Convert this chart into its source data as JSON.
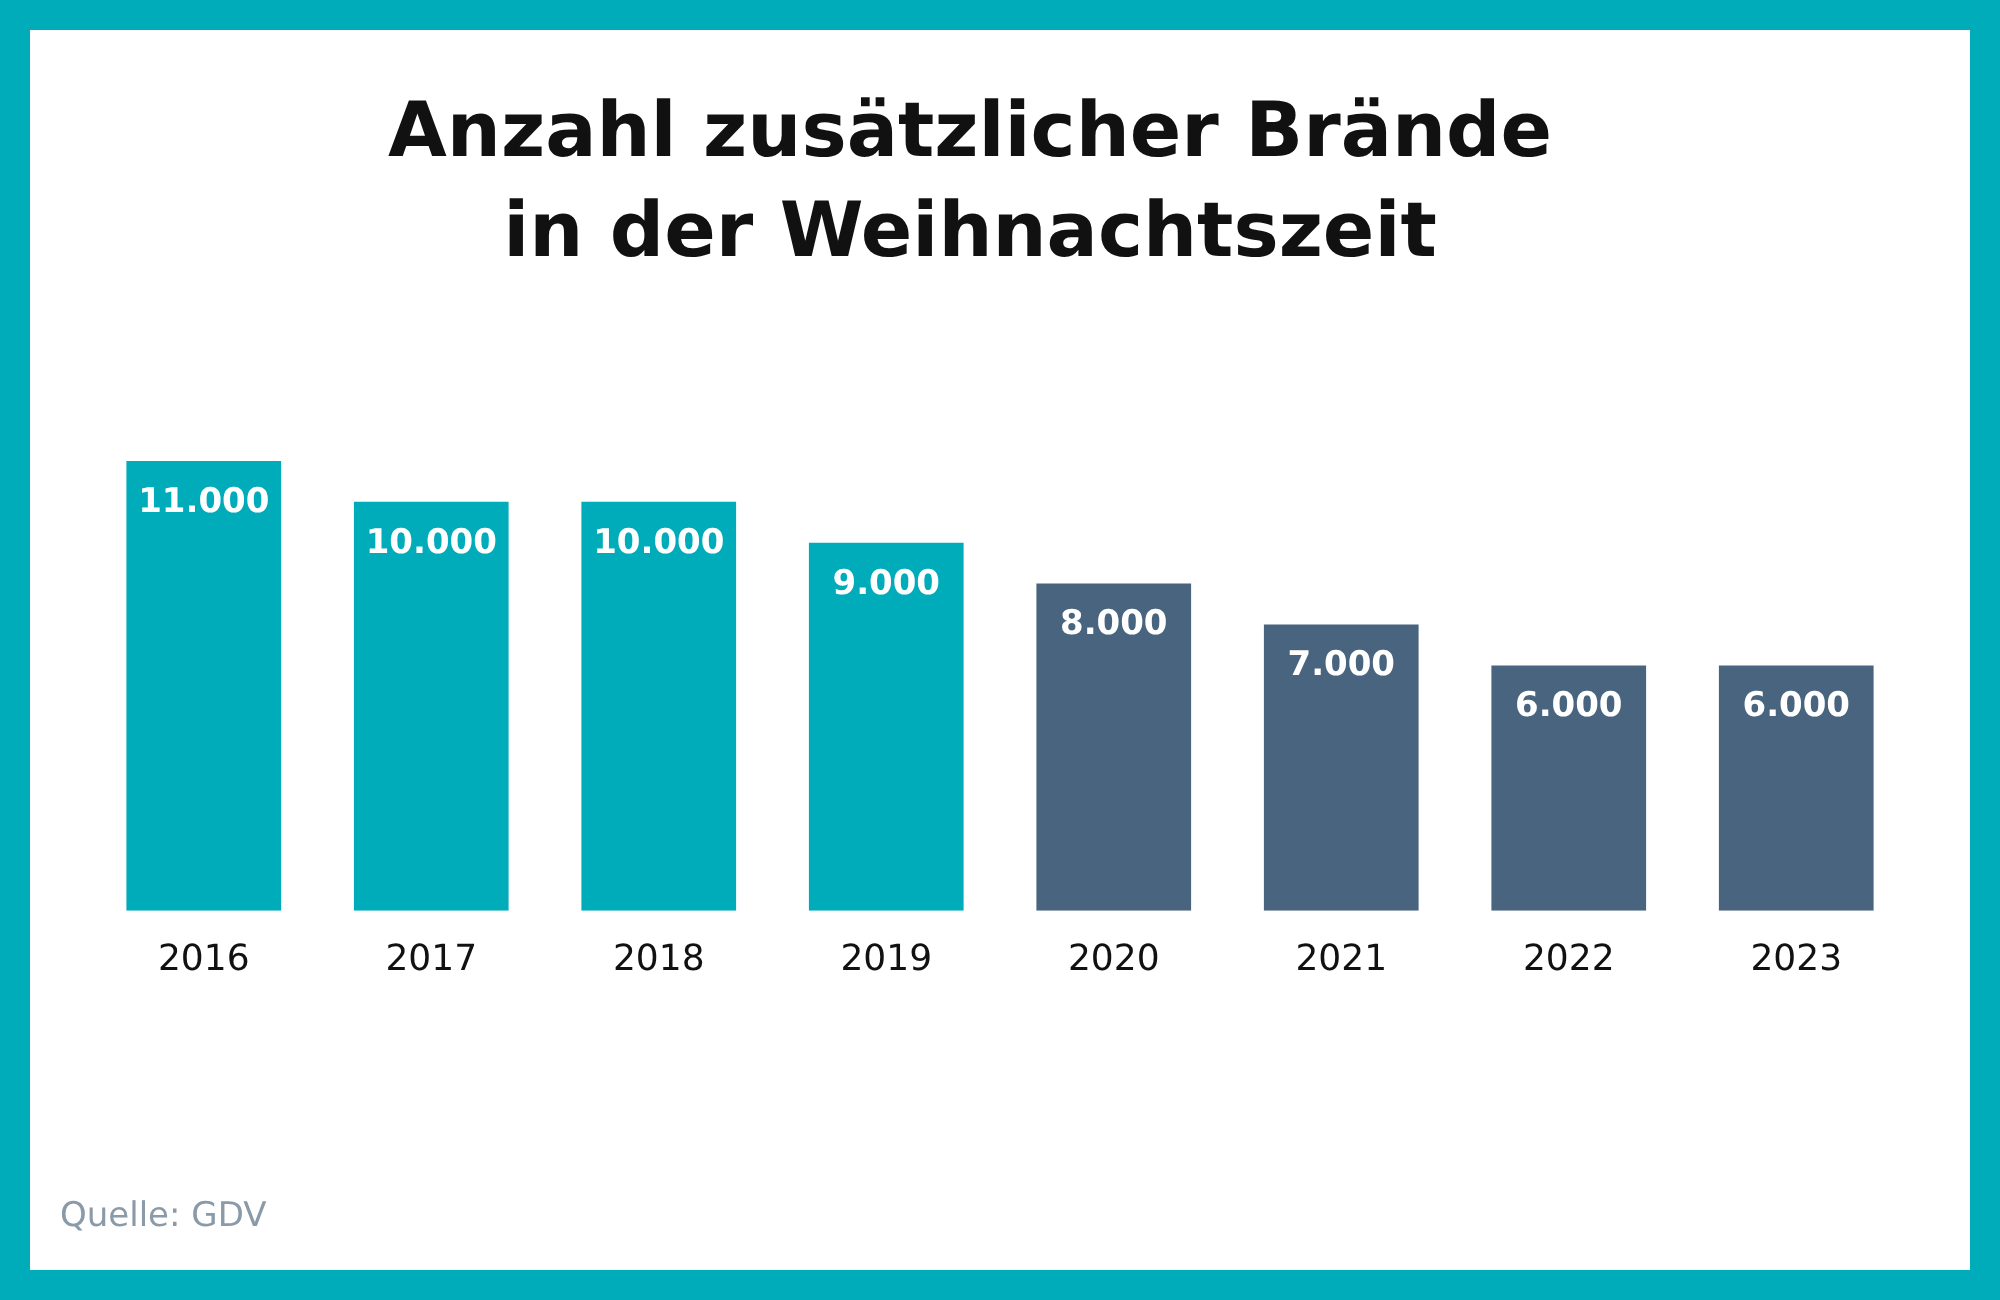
{
  "chart_data": {
    "type": "bar",
    "title": "Anzahl zusätzlicher Brände in der Weihnachtszeit",
    "categories": [
      "2016",
      "2017",
      "2018",
      "2019",
      "2020",
      "2021",
      "2022",
      "2023"
    ],
    "values": [
      11000,
      10000,
      10000,
      9000,
      8000,
      7000,
      6000,
      6000
    ],
    "value_labels": [
      "11.000",
      "10.000",
      "10.000",
      "9.000",
      "8.000",
      "7.000",
      "6.000",
      "6.000"
    ],
    "colors": [
      "#00acba",
      "#00acba",
      "#00acba",
      "#00acba",
      "#48647e",
      "#48647e",
      "#48647e",
      "#48647e"
    ],
    "grid": false,
    "legend": false,
    "annotations": [
      "Quelle: GDV"
    ]
  }
}
